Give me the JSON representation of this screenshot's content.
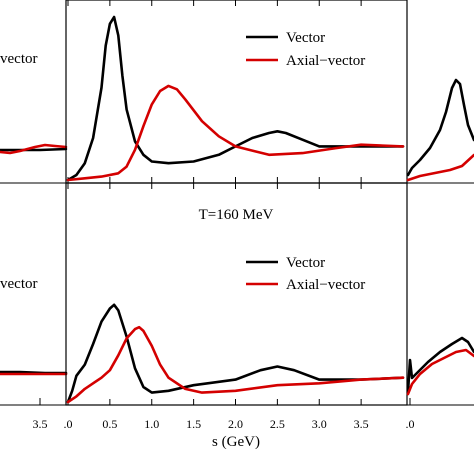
{
  "colors": {
    "vector": "#000000",
    "axial": "#d40000"
  },
  "xlabel": "s (GeV)",
  "panel_title_bottom": "T=160 MeV",
  "legend": {
    "vector": "Vector",
    "axial": "Axial−vector"
  },
  "left_fragment_text": "vector",
  "left_fragment_tick": "3.5",
  "middle_ticks": [
    ".0",
    "0.5",
    "1.0",
    "1.5",
    "2.0",
    "2.5",
    "3.0",
    "3.5"
  ],
  "right_fragment_tick": ".0",
  "chart_data": [
    {
      "type": "line",
      "panel": "top-middle",
      "title": "",
      "xlabel": "",
      "xlim": [
        0.0,
        4.0
      ],
      "ylim": [
        0.0,
        1.0
      ],
      "legend_position": "top-right",
      "series": [
        {
          "name": "Vector",
          "color": "#000000",
          "x": [
            0.0,
            0.1,
            0.2,
            0.3,
            0.4,
            0.45,
            0.5,
            0.55,
            0.6,
            0.65,
            0.7,
            0.8,
            0.9,
            1.0,
            1.2,
            1.5,
            1.8,
            2.0,
            2.2,
            2.4,
            2.5,
            2.6,
            2.8,
            3.0,
            3.5,
            4.0
          ],
          "y": [
            0.0,
            0.03,
            0.1,
            0.25,
            0.55,
            0.8,
            0.93,
            0.97,
            0.86,
            0.62,
            0.42,
            0.23,
            0.15,
            0.11,
            0.1,
            0.11,
            0.15,
            0.2,
            0.25,
            0.28,
            0.29,
            0.28,
            0.24,
            0.2,
            0.2,
            0.2
          ]
        },
        {
          "name": "Axial−vector",
          "color": "#d40000",
          "x": [
            0.0,
            0.2,
            0.4,
            0.6,
            0.7,
            0.8,
            0.9,
            1.0,
            1.1,
            1.2,
            1.3,
            1.4,
            1.6,
            1.8,
            2.0,
            2.4,
            2.8,
            3.2,
            3.5,
            4.0
          ],
          "y": [
            0.0,
            0.01,
            0.02,
            0.04,
            0.08,
            0.18,
            0.32,
            0.45,
            0.53,
            0.56,
            0.54,
            0.48,
            0.35,
            0.26,
            0.2,
            0.15,
            0.16,
            0.19,
            0.21,
            0.2
          ]
        }
      ]
    },
    {
      "type": "line",
      "panel": "bottom-middle",
      "title": "T=160 MeV",
      "xlabel": "s (GeV)",
      "xlim": [
        0.0,
        4.0
      ],
      "ylim": [
        0.0,
        1.0
      ],
      "legend_position": "top-right",
      "series": [
        {
          "name": "Vector",
          "color": "#000000",
          "x": [
            0.0,
            0.05,
            0.1,
            0.2,
            0.3,
            0.4,
            0.5,
            0.55,
            0.6,
            0.7,
            0.8,
            0.9,
            1.0,
            1.2,
            1.5,
            2.0,
            2.3,
            2.5,
            2.7,
            3.0,
            3.5,
            4.0
          ],
          "y": [
            0.0,
            0.06,
            0.14,
            0.2,
            0.31,
            0.43,
            0.5,
            0.52,
            0.49,
            0.35,
            0.18,
            0.08,
            0.05,
            0.06,
            0.09,
            0.12,
            0.17,
            0.19,
            0.17,
            0.12,
            0.12,
            0.13
          ]
        },
        {
          "name": "Axial−vector",
          "color": "#d40000",
          "x": [
            0.0,
            0.1,
            0.2,
            0.3,
            0.4,
            0.5,
            0.6,
            0.7,
            0.8,
            0.85,
            0.9,
            1.0,
            1.1,
            1.2,
            1.4,
            1.6,
            2.0,
            2.5,
            3.0,
            3.5,
            4.0
          ],
          "y": [
            0.0,
            0.03,
            0.07,
            0.1,
            0.13,
            0.17,
            0.25,
            0.34,
            0.39,
            0.4,
            0.38,
            0.3,
            0.2,
            0.13,
            0.07,
            0.05,
            0.06,
            0.09,
            0.1,
            0.12,
            0.13
          ]
        }
      ]
    }
  ]
}
